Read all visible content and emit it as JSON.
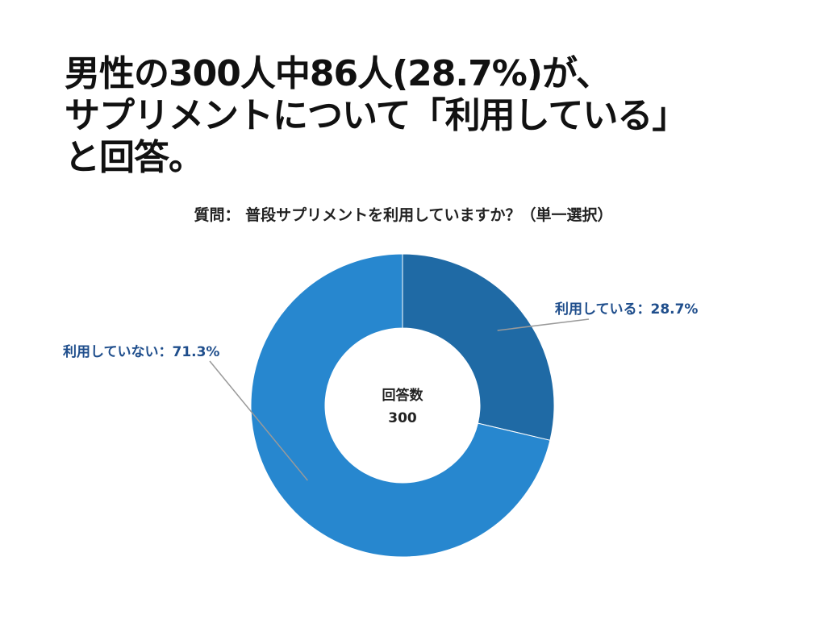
{
  "headline": {
    "line1": "男性の300人中86人(28.7%)が、",
    "line2": "サプリメントについて「利用している」",
    "line3": "と回答。"
  },
  "question": "質問： 普段サプリメントを利用していますか？（単一選択）",
  "chart_data": {
    "type": "pie",
    "donut": true,
    "legend": "none",
    "center_label": "回答数",
    "center_value": "300",
    "slices": [
      {
        "label": "利用している：28.7%",
        "value": 28.7,
        "color": "#1f6aa5"
      },
      {
        "label": "利用していない：71.3%",
        "value": 71.3,
        "color": "#2787cf"
      }
    ]
  }
}
